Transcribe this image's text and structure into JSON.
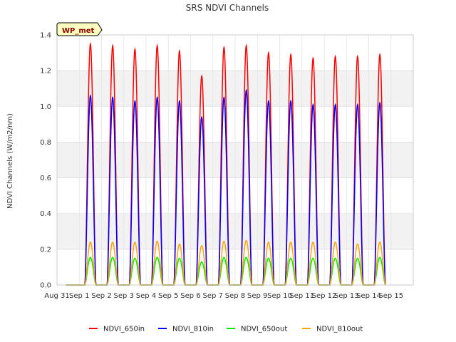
{
  "chart_data": {
    "type": "line",
    "title": "SRS NDVI Channels",
    "ylabel": "NDVI Channels (W/m2/nm)",
    "xlabel": "",
    "badge": "WP_met",
    "ylim": [
      0,
      1.4
    ],
    "yticks": [
      0.0,
      0.2,
      0.4,
      0.6,
      0.8,
      1.0,
      1.2,
      1.4
    ],
    "ytick_labels": [
      "0.0",
      "0.2",
      "0.4",
      "0.6",
      "0.8",
      "1.0",
      "1.2",
      "1.4"
    ],
    "xlim": [
      0,
      16
    ],
    "xticks": [
      0,
      1,
      2,
      3,
      4,
      5,
      6,
      7,
      8,
      9,
      10,
      11,
      12,
      13,
      14,
      15
    ],
    "xtick_labels": [
      "Aug 31",
      "Sep 1",
      "Sep 2",
      "Sep 3",
      "Sep 4",
      "Sep 5",
      "Sep 6",
      "Sep 7",
      "Sep 8",
      "Sep 9",
      "Sep 10",
      "Sep 11",
      "Sep 12",
      "Sep 13",
      "Sep 14",
      "Sep 15"
    ],
    "grid": true,
    "band_shading": true,
    "legend_position": "bottom",
    "peak_day_offset": 0.5,
    "half_width_days": 0.25,
    "series": [
      {
        "name": "NDVI_650in",
        "color": "#ff0000",
        "peaks": [
          1.35,
          1.34,
          1.32,
          1.34,
          1.31,
          1.17,
          1.33,
          1.34,
          1.3,
          1.29,
          1.27,
          1.28,
          1.28,
          1.29
        ]
      },
      {
        "name": "NDVI_810in",
        "color": "#0000ff",
        "peaks": [
          1.06,
          1.05,
          1.03,
          1.05,
          1.03,
          0.94,
          1.05,
          1.09,
          1.03,
          1.03,
          1.01,
          1.01,
          1.01,
          1.02
        ]
      },
      {
        "name": "NDVI_650out",
        "color": "#00ee00",
        "peaks": [
          0.155,
          0.155,
          0.15,
          0.155,
          0.15,
          0.13,
          0.155,
          0.155,
          0.15,
          0.15,
          0.15,
          0.15,
          0.15,
          0.155
        ]
      },
      {
        "name": "NDVI_810out",
        "color": "#ffa500",
        "peaks": [
          0.24,
          0.24,
          0.24,
          0.245,
          0.23,
          0.22,
          0.245,
          0.25,
          0.24,
          0.24,
          0.24,
          0.24,
          0.23,
          0.24
        ]
      }
    ]
  }
}
